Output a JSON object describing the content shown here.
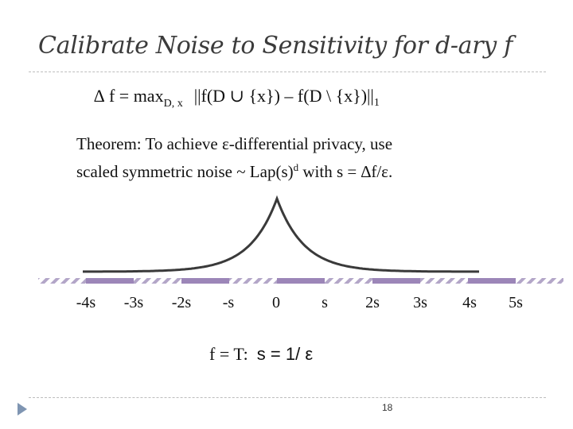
{
  "slide": {
    "title": "Calibrate Noise to Sensitivity for d-ary f",
    "formula": {
      "lhs": "∆ f = max",
      "subscript": "D, x",
      "rhs": "||f(D ∪ {x}) – f(D \\ {x})||",
      "norm_subscript": "1"
    },
    "theorem": {
      "line1": "Theorem: To achieve ε-differential privacy, use",
      "line2_a": "scaled symmetric noise ~ Lap(s)",
      "line2_sup": "d",
      "line2_b": " with s = ∆f/ε."
    },
    "tick_labels": [
      "-4s",
      "-3s",
      "-2s",
      "-s",
      "0",
      "s",
      "2s",
      "3s",
      "4s",
      "5s"
    ],
    "special_line": {
      "part1": "f = T:",
      "part2": "s = 1/ ε"
    },
    "page_number": "18",
    "colors": {
      "accent": "#9c86b8",
      "hatch": "#b3a6c8",
      "curve": "#3a3a3a",
      "title": "#3b3b3b"
    }
  }
}
